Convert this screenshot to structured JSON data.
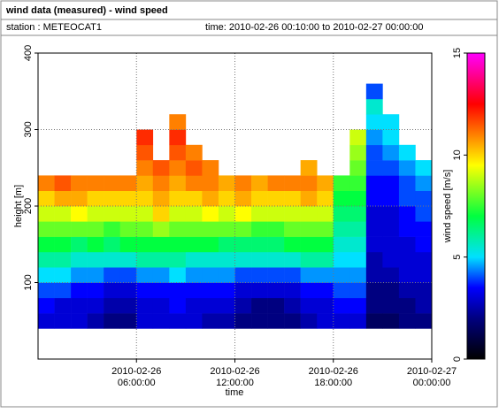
{
  "chart_data": {
    "type": "heatmap",
    "title": "wind data (measured) - wind speed",
    "station": "station : METEOCAT1",
    "time_range": "time: 2010-02-26 00:10:00 to 2010-02-27 00:00:00",
    "xlabel": "time",
    "ylabel": "height [m]",
    "zlabel": "wind speed [m/s]",
    "x": [
      "2010-02-26 00:00:00",
      "2010-02-26 01:00:00",
      "2010-02-26 02:00:00",
      "2010-02-26 03:00:00",
      "2010-02-26 04:00:00",
      "2010-02-26 05:00:00",
      "2010-02-26 06:00:00",
      "2010-02-26 07:00:00",
      "2010-02-26 08:00:00",
      "2010-02-26 09:00:00",
      "2010-02-26 10:00:00",
      "2010-02-26 11:00:00",
      "2010-02-26 12:00:00",
      "2010-02-26 13:00:00",
      "2010-02-26 14:00:00",
      "2010-02-26 15:00:00",
      "2010-02-26 16:00:00",
      "2010-02-26 17:00:00",
      "2010-02-26 18:00:00",
      "2010-02-26 19:00:00",
      "2010-02-26 20:00:00",
      "2010-02-26 21:00:00",
      "2010-02-26 22:00:00",
      "2010-02-26 23:00:00"
    ],
    "xlim": [
      "2010-02-26 00:00:00",
      "2010-02-27 00:00:00"
    ],
    "xticks": [
      "2010-02-26 06:00:00",
      "2010-02-26 12:00:00",
      "2010-02-26 18:00:00",
      "2010-02-27 00:00:00"
    ],
    "y_bins": [
      40,
      60,
      80,
      100,
      120,
      140,
      160,
      180,
      200,
      220,
      240,
      260,
      280,
      300,
      320,
      340,
      360
    ],
    "ylim": [
      0,
      400
    ],
    "yticks": [
      100,
      200,
      300,
      400
    ],
    "zlim": [
      0,
      15
    ],
    "zticks": [
      0,
      5,
      10,
      15
    ],
    "colorscale": [
      [
        0,
        "#000000"
      ],
      [
        2,
        "#000080"
      ],
      [
        3.5,
        "#0000ff"
      ],
      [
        5,
        "#00e0ff"
      ],
      [
        7,
        "#00ff40"
      ],
      [
        9.5,
        "#ffff00"
      ],
      [
        11,
        "#ff8000"
      ],
      [
        12.5,
        "#ff0000"
      ],
      [
        15,
        "#ff00ff"
      ]
    ],
    "grid": true,
    "z": [
      [
        3,
        3,
        3,
        2.5,
        2,
        2,
        3,
        3,
        3,
        3,
        2.5,
        2.5,
        2,
        2,
        2,
        2,
        2.5,
        3,
        3,
        3,
        1.5,
        1.5,
        2,
        2
      ],
      [
        3.5,
        3,
        3,
        3,
        2.5,
        2.5,
        3,
        3,
        3.5,
        3,
        3,
        3,
        2.5,
        2,
        2,
        2.5,
        3,
        3,
        3.5,
        3.5,
        2,
        2,
        2,
        2.5
      ],
      [
        4,
        4,
        3.5,
        3.5,
        3,
        3,
        3.5,
        3.5,
        3.5,
        3.5,
        3.5,
        3.5,
        3,
        3,
        3,
        3,
        3.5,
        3.5,
        4,
        4,
        2,
        2,
        2.5,
        2.5
      ],
      [
        5,
        5,
        4.5,
        4.5,
        4,
        4,
        4.5,
        4.5,
        5,
        4.5,
        4.5,
        4.5,
        4,
        4,
        4,
        4,
        4.5,
        4.5,
        4.5,
        4.5,
        2.5,
        2.5,
        3,
        3
      ],
      [
        6,
        6,
        5.5,
        5.5,
        5.5,
        5.5,
        6,
        6,
        6,
        5.5,
        5.5,
        5.5,
        5.5,
        5.5,
        5.5,
        5.5,
        6,
        6,
        5,
        5,
        2.5,
        3,
        3,
        3
      ],
      [
        7,
        7,
        6.5,
        7,
        6.5,
        7,
        7,
        7,
        7,
        7,
        7,
        6.5,
        6.5,
        6.5,
        6.5,
        7,
        7,
        7,
        5.5,
        5.5,
        3,
        3,
        3,
        3.5
      ],
      [
        8,
        8,
        8,
        8,
        7.5,
        8,
        8,
        8.5,
        8,
        8,
        8,
        8,
        8,
        7.5,
        7.5,
        8,
        8,
        8,
        6,
        6,
        3,
        3,
        3.5,
        3.5
      ],
      [
        9,
        9,
        9.5,
        9,
        9,
        9,
        9,
        10,
        9,
        9,
        9.5,
        9,
        9.5,
        9,
        9,
        9,
        9,
        9,
        6.5,
        6.5,
        3,
        3,
        3.5,
        4
      ],
      [
        10,
        10.5,
        10.5,
        10,
        10,
        10,
        10,
        10.5,
        10,
        10,
        10.5,
        10,
        10.5,
        10,
        10,
        10,
        10.5,
        10,
        7,
        7,
        3.5,
        3.5,
        4,
        4
      ],
      [
        11,
        11.5,
        11,
        11,
        11,
        11,
        10.5,
        11,
        10.5,
        11,
        11,
        10.5,
        11,
        10.5,
        11,
        11,
        11,
        10.5,
        7.5,
        7.5,
        3.5,
        3.5,
        4,
        4.5
      ],
      [
        null,
        null,
        null,
        null,
        null,
        null,
        11,
        11.5,
        11,
        11.5,
        11,
        null,
        null,
        null,
        null,
        null,
        10.5,
        null,
        null,
        8,
        4,
        4,
        4.5,
        5
      ],
      [
        null,
        null,
        null,
        null,
        null,
        null,
        11.5,
        null,
        11.5,
        11,
        null,
        null,
        null,
        null,
        null,
        null,
        null,
        null,
        null,
        8.5,
        4,
        4.5,
        5,
        null
      ],
      [
        null,
        null,
        null,
        null,
        null,
        null,
        12,
        null,
        12,
        null,
        null,
        null,
        null,
        null,
        null,
        null,
        null,
        null,
        null,
        9,
        4.5,
        5,
        null,
        null
      ],
      [
        null,
        null,
        null,
        null,
        null,
        null,
        null,
        null,
        11,
        null,
        null,
        null,
        null,
        null,
        null,
        null,
        null,
        null,
        null,
        null,
        5,
        5,
        null,
        null
      ],
      [
        null,
        null,
        null,
        null,
        null,
        null,
        null,
        null,
        null,
        null,
        null,
        null,
        null,
        null,
        null,
        null,
        null,
        null,
        null,
        null,
        5.5,
        null,
        null,
        null
      ],
      [
        null,
        null,
        null,
        null,
        null,
        null,
        null,
        null,
        null,
        null,
        null,
        null,
        null,
        null,
        null,
        null,
        null,
        null,
        null,
        null,
        4,
        null,
        null,
        null
      ]
    ]
  }
}
